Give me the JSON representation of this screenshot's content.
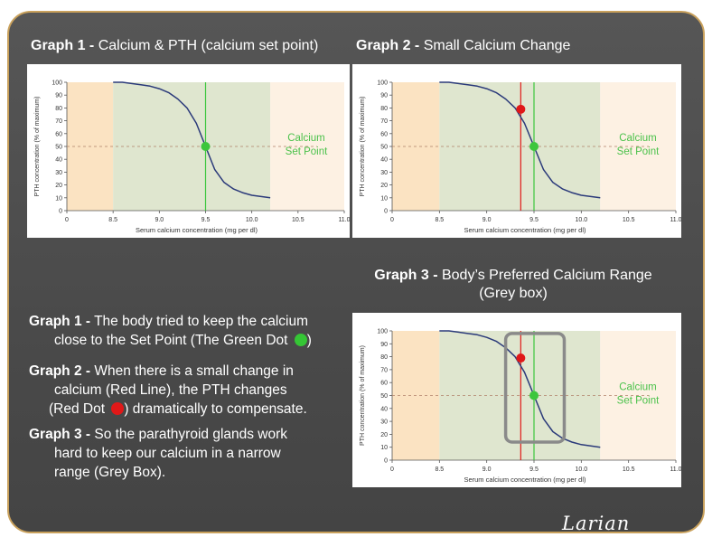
{
  "graph1": {
    "label": "Graph 1 -",
    "title": "Calcium & PTH (calcium set point)"
  },
  "graph2": {
    "label": "Graph 2 -",
    "title": "Small Calcium Change"
  },
  "graph3": {
    "label": "Graph 3 -",
    "title_line1": "Body’s Preferred Calcium Range",
    "title_line2": "(Grey box)"
  },
  "set_point_label": [
    "Calcium",
    "Set Point"
  ],
  "descriptions": [
    {
      "label": "Graph 1 -",
      "line1": "The body tried to keep the calcium",
      "line2": "close to the Set Point  (The Green Dot",
      "line2_end": ")"
    },
    {
      "label": "Graph 2 -",
      "line1": "When there is a small change in",
      "line2": "calcium (Red Line), the PTH changes",
      "line3": "(Red Dot",
      "line3_end": ") dramatically to compensate."
    },
    {
      "label": "Graph 3 -",
      "line1": "So the parathyroid glands work",
      "line2": "hard to keep our calcium in a narrow",
      "line3": "range (Grey Box)."
    }
  ],
  "signature": "Larian",
  "colors": {
    "curve": "#2b3a7a",
    "green": "#3cc63c",
    "red": "#e01818",
    "left_zone": "#fbe3c2",
    "mid_zone": "#dfe6cf",
    "right_zone": "#fdf1e3",
    "greybox": "#8a8a8a"
  },
  "chart_data": [
    {
      "type": "line",
      "title": "Calcium & PTH (calcium set point)",
      "xlabel": "Serum calcium concentration (mg per dl)",
      "ylabel": "PTH concentration (% of maximum)",
      "xlim": [
        8.0,
        11.0
      ],
      "ylim": [
        0,
        100
      ],
      "xticks": [
        "0",
        "8.5",
        "9.0",
        "9.5",
        "10.0",
        "10.5",
        "11.0"
      ],
      "yticks": [
        "0",
        "10",
        "20",
        "30",
        "40",
        "50",
        "60",
        "70",
        "80",
        "90",
        "100"
      ],
      "series": [
        {
          "x": [
            8.5,
            8.6,
            8.7,
            8.8,
            8.9,
            9.0,
            9.1,
            9.2,
            9.3,
            9.4,
            9.5,
            9.6,
            9.7,
            9.8,
            9.9,
            10.0,
            10.1,
            10.2
          ],
          "values": [
            100,
            100,
            99,
            98,
            97,
            95,
            92,
            87,
            80,
            68,
            50,
            32,
            22,
            17,
            14,
            12,
            11,
            10
          ]
        }
      ],
      "annotations": [
        {
          "type": "vline",
          "x": 9.5,
          "color": "green"
        },
        {
          "type": "hline",
          "y": 50,
          "style": "dashed"
        },
        {
          "type": "point",
          "x": 9.5,
          "y": 50,
          "color": "green"
        },
        {
          "type": "text",
          "text": "Calcium Set Point"
        }
      ],
      "zones": [
        {
          "from": 8.0,
          "to": 8.5
        },
        {
          "from": 8.5,
          "to": 10.2
        },
        {
          "from": 10.2,
          "to": 11.0
        }
      ]
    },
    {
      "type": "line",
      "title": "Small Calcium Change",
      "xlabel": "Serum calcium concentration (mg per dl)",
      "ylabel": "PTH concentration (% of maximum)",
      "xlim": [
        8.0,
        11.0
      ],
      "ylim": [
        0,
        100
      ],
      "xticks": [
        "0",
        "8.5",
        "9.0",
        "9.5",
        "10.0",
        "10.5",
        "11.0"
      ],
      "yticks": [
        "0",
        "10",
        "20",
        "30",
        "40",
        "50",
        "60",
        "70",
        "80",
        "90",
        "100"
      ],
      "series": [
        {
          "x": [
            8.5,
            8.6,
            8.7,
            8.8,
            8.9,
            9.0,
            9.1,
            9.2,
            9.3,
            9.4,
            9.5,
            9.6,
            9.7,
            9.8,
            9.9,
            10.0,
            10.1,
            10.2
          ],
          "values": [
            100,
            100,
            99,
            98,
            97,
            95,
            92,
            87,
            80,
            68,
            50,
            32,
            22,
            17,
            14,
            12,
            11,
            10
          ]
        }
      ],
      "annotations": [
        {
          "type": "vline",
          "x": 9.5,
          "color": "green"
        },
        {
          "type": "vline",
          "x": 9.36,
          "color": "red"
        },
        {
          "type": "hline",
          "y": 50,
          "style": "dashed"
        },
        {
          "type": "point",
          "x": 9.5,
          "y": 50,
          "color": "green"
        },
        {
          "type": "point",
          "x": 9.36,
          "y": 79,
          "color": "red"
        },
        {
          "type": "text",
          "text": "Calcium Set Point"
        }
      ],
      "zones": [
        {
          "from": 8.0,
          "to": 8.5
        },
        {
          "from": 8.5,
          "to": 10.2
        },
        {
          "from": 10.2,
          "to": 11.0
        }
      ]
    },
    {
      "type": "line",
      "title": "Body’s Preferred Calcium Range (Grey box)",
      "xlabel": "Serum calcium concentration (mg per dl)",
      "ylabel": "PTH concentration (% of maximum)",
      "xlim": [
        8.0,
        11.0
      ],
      "ylim": [
        0,
        100
      ],
      "xticks": [
        "0",
        "8.5",
        "9.0",
        "9.5",
        "10.0",
        "10.5",
        "11.0"
      ],
      "yticks": [
        "0",
        "10",
        "20",
        "30",
        "40",
        "50",
        "60",
        "70",
        "80",
        "90",
        "100"
      ],
      "series": [
        {
          "x": [
            8.5,
            8.6,
            8.7,
            8.8,
            8.9,
            9.0,
            9.1,
            9.2,
            9.3,
            9.4,
            9.5,
            9.6,
            9.7,
            9.8,
            9.9,
            10.0,
            10.1,
            10.2
          ],
          "values": [
            100,
            100,
            99,
            98,
            97,
            95,
            92,
            87,
            80,
            68,
            50,
            32,
            22,
            17,
            14,
            12,
            11,
            10
          ]
        }
      ],
      "annotations": [
        {
          "type": "vline",
          "x": 9.5,
          "color": "green"
        },
        {
          "type": "vline",
          "x": 9.36,
          "color": "red"
        },
        {
          "type": "hline",
          "y": 50,
          "style": "dashed"
        },
        {
          "type": "point",
          "x": 9.5,
          "y": 50,
          "color": "green"
        },
        {
          "type": "point",
          "x": 9.36,
          "y": 79,
          "color": "red"
        },
        {
          "type": "rect",
          "x0": 9.2,
          "x1": 9.82,
          "y0": 14,
          "y1": 98,
          "color": "grey"
        },
        {
          "type": "text",
          "text": "Calcium Set Point"
        }
      ],
      "zones": [
        {
          "from": 8.0,
          "to": 8.5
        },
        {
          "from": 8.5,
          "to": 10.2
        },
        {
          "from": 10.2,
          "to": 11.0
        }
      ]
    }
  ]
}
